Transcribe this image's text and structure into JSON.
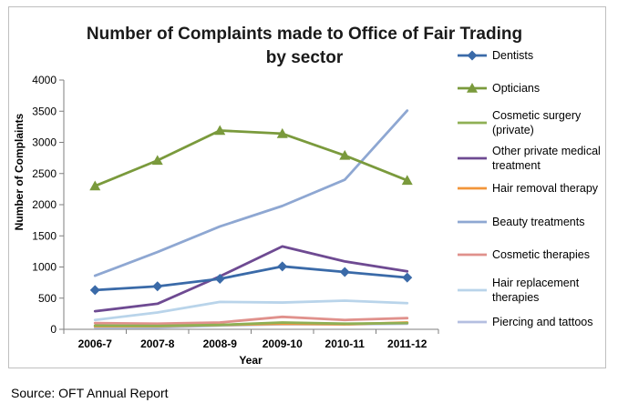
{
  "chart_data": {
    "type": "line",
    "title_lines": [
      "Number of Complaints made to Office of Fair Trading",
      "by sector"
    ],
    "xlabel": "Year",
    "ylabel": "Number of Complaints",
    "categories": [
      "2006-7",
      "2007-8",
      "2008-9",
      "2009-10",
      "2010-11",
      "2011-12"
    ],
    "ylim": [
      0,
      4000
    ],
    "yticks": [
      "0",
      "500",
      "1000",
      "1500",
      "2000",
      "2500",
      "3000",
      "3500",
      "4000"
    ],
    "grid": false,
    "legend_position": "right",
    "series": [
      {
        "name": "Dentists",
        "legend_lines": [
          "Dentists"
        ],
        "color": "#3a6aa8",
        "marker": "diamond",
        "values": [
          630,
          690,
          810,
          1010,
          920,
          830
        ]
      },
      {
        "name": "Opticians",
        "legend_lines": [
          "Opticians"
        ],
        "color": "#7a9a3c",
        "marker": "triangle",
        "values": [
          2300,
          2710,
          3190,
          3140,
          2790,
          2390
        ]
      },
      {
        "name": "Cosmetic surgery (private)",
        "legend_lines": [
          "Cosmetic surgery",
          "(private)"
        ],
        "color": "#8fb055",
        "marker": "none",
        "values": [
          60,
          55,
          70,
          110,
          90,
          100
        ]
      },
      {
        "name": "Other private medical treatment",
        "legend_lines": [
          "Other private medical",
          "treatment"
        ],
        "color": "#6e4a92",
        "marker": "none",
        "values": [
          290,
          410,
          850,
          1330,
          1090,
          930
        ]
      },
      {
        "name": "Hair removal therapy",
        "legend_lines": [
          "Hair removal therapy"
        ],
        "color": "#f2953a",
        "marker": "none",
        "values": [
          50,
          50,
          70,
          90,
          80,
          110
        ]
      },
      {
        "name": "Beauty treatments",
        "legend_lines": [
          "Beauty treatments"
        ],
        "color": "#8ea7d2",
        "marker": "none",
        "values": [
          860,
          1240,
          1650,
          1980,
          2400,
          3510
        ]
      },
      {
        "name": "Cosmetic therapies",
        "legend_lines": [
          "Cosmetic therapies"
        ],
        "color": "#e0918c",
        "marker": "none",
        "values": [
          100,
          90,
          110,
          200,
          150,
          180
        ]
      },
      {
        "name": "Hair replacement therapies",
        "legend_lines": [
          "Hair replacement",
          "therapies"
        ],
        "color": "#b9d4ea",
        "marker": "none",
        "values": [
          150,
          270,
          440,
          430,
          460,
          420
        ]
      },
      {
        "name": "Piercing and tattoos",
        "legend_lines": [
          "Piercing and tattoos"
        ],
        "color": "#b4bfe0",
        "marker": "none",
        "values": [
          30,
          30,
          60,
          80,
          80,
          90
        ]
      }
    ]
  },
  "source_note": "Source: OFT Annual Report"
}
